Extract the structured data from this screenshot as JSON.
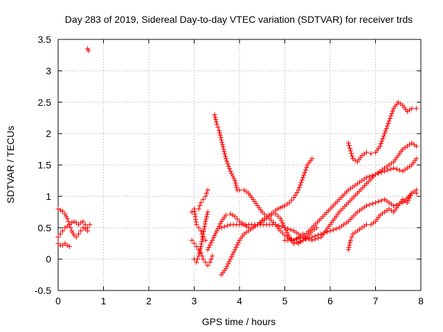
{
  "chart_data": {
    "type": "scatter",
    "title": "Day 283 of 2019, Sidereal Day-to-day VTEC variation (SDTVAR) for receiver trds",
    "xlabel": "GPS time / hours",
    "ylabel": "SDTVAR / TECUs",
    "xlim": [
      0,
      8
    ],
    "ylim": [
      -0.5,
      3.5
    ],
    "xticks": [
      0,
      1,
      2,
      3,
      4,
      5,
      6,
      7,
      8
    ],
    "xtick_labels": [
      "0",
      "1",
      "2",
      "3",
      "4",
      "5",
      "6",
      "7",
      "8"
    ],
    "yticks": [
      -0.5,
      0,
      0.5,
      1,
      1.5,
      2,
      2.5,
      3,
      3.5
    ],
    "ytick_labels": [
      "-0.5",
      "0",
      "0.5",
      "1",
      "1.5",
      "2",
      "2.5",
      "3",
      "3.5"
    ],
    "grid": true,
    "marker": "+",
    "color": "#ff0000",
    "series": [
      {
        "x": [
          0.0,
          0.05,
          0.1,
          0.15,
          0.2,
          0.25,
          0.3,
          0.35,
          0.4,
          0.45,
          0.5,
          0.55,
          0.6,
          0.65,
          0.7
        ],
        "y": [
          0.35,
          0.4,
          0.45,
          0.5,
          0.52,
          0.55,
          0.58,
          0.6,
          0.58,
          0.55,
          0.58,
          0.6,
          0.55,
          0.5,
          0.55
        ]
      },
      {
        "x": [
          0.0,
          0.05,
          0.1,
          0.15,
          0.2,
          0.25,
          0.3,
          0.35,
          0.4,
          0.45,
          0.5,
          0.55,
          0.6,
          0.65
        ],
        "y": [
          0.8,
          0.78,
          0.76,
          0.72,
          0.65,
          0.55,
          0.45,
          0.38,
          0.35,
          0.4,
          0.45,
          0.5,
          0.48,
          0.45
        ]
      },
      {
        "x": [
          0.0,
          0.05,
          0.1,
          0.15,
          0.2,
          0.25
        ],
        "y": [
          0.25,
          0.22,
          0.22,
          0.25,
          0.22,
          0.2
        ]
      },
      {
        "x": [
          0.65,
          0.67
        ],
        "y": [
          3.35,
          3.32
        ]
      },
      {
        "x": [
          2.95,
          3.0,
          3.05,
          3.1,
          3.15,
          3.2,
          3.25,
          3.3,
          3.35,
          3.4
        ],
        "y": [
          0.3,
          0.25,
          0.2,
          0.15,
          0.1,
          0.0,
          -0.05,
          -0.1,
          -0.05,
          0.05
        ]
      },
      {
        "x": [
          2.95,
          3.0,
          3.05,
          3.1,
          3.15,
          3.2,
          3.25
        ],
        "y": [
          0.75,
          0.8,
          0.55,
          0.5,
          0.45,
          0.35,
          0.3
        ]
      },
      {
        "x": [
          3.0,
          3.05,
          3.1,
          3.15,
          3.2,
          3.25,
          3.3
        ],
        "y": [
          0.0,
          -0.05,
          0.05,
          0.2,
          0.4,
          0.6,
          0.75
        ]
      },
      {
        "x": [
          3.1,
          3.15,
          3.2,
          3.25,
          3.3
        ],
        "y": [
          0.8,
          0.9,
          0.95,
          1.0,
          1.1
        ]
      },
      {
        "x": [
          3.3,
          3.4,
          3.5,
          3.6,
          3.7,
          3.8,
          3.9,
          4.0,
          4.1,
          4.2,
          4.3,
          4.4,
          4.5,
          4.6,
          4.7,
          4.8,
          4.9,
          5.0,
          5.1,
          5.2,
          5.3,
          5.4,
          5.5,
          5.6
        ],
        "y": [
          0.15,
          0.3,
          0.45,
          0.6,
          0.7,
          0.72,
          0.68,
          0.6,
          0.55,
          0.5,
          0.5,
          0.55,
          0.62,
          0.68,
          0.72,
          0.78,
          0.82,
          0.85,
          0.9,
          0.98,
          1.1,
          1.3,
          1.5,
          1.6
        ]
      },
      {
        "x": [
          3.45,
          3.5,
          3.55,
          3.6,
          3.7,
          3.8,
          3.9,
          3.95,
          4.0,
          4.1,
          4.2,
          4.3,
          4.4,
          4.5,
          4.6,
          4.7,
          4.8,
          4.9,
          5.0,
          5.1,
          5.2,
          5.3,
          5.4
        ],
        "y": [
          2.3,
          2.15,
          2.05,
          1.9,
          1.6,
          1.4,
          1.25,
          1.1,
          1.1,
          1.1,
          1.05,
          0.95,
          0.85,
          0.75,
          0.68,
          0.62,
          0.55,
          0.45,
          0.38,
          0.33,
          0.3,
          0.35,
          0.4
        ]
      },
      {
        "x": [
          3.6,
          3.7,
          3.8,
          3.9,
          4.0,
          4.1,
          4.2,
          4.3,
          4.4,
          4.5,
          4.6,
          4.7,
          4.8,
          4.9,
          5.0,
          5.1,
          5.2,
          5.3,
          5.4,
          5.5,
          5.6,
          5.7
        ],
        "y": [
          -0.25,
          -0.15,
          0.0,
          0.15,
          0.3,
          0.4,
          0.45,
          0.5,
          0.55,
          0.6,
          0.65,
          0.7,
          0.72,
          0.65,
          0.5,
          0.35,
          0.25,
          0.25,
          0.3,
          0.35,
          0.45,
          0.5
        ]
      },
      {
        "x": [
          3.6,
          3.8,
          4.0,
          4.2,
          4.4,
          4.6,
          4.8,
          5.0,
          5.2,
          5.4,
          5.6,
          5.8,
          6.0,
          6.2,
          6.4,
          6.6,
          6.8,
          7.0,
          7.2,
          7.4,
          7.6,
          7.8,
          7.9
        ],
        "y": [
          0.5,
          0.55,
          0.55,
          0.55,
          0.55,
          0.55,
          0.55,
          0.5,
          0.45,
          0.35,
          0.3,
          0.35,
          0.55,
          0.75,
          0.9,
          1.05,
          1.2,
          1.35,
          1.4,
          1.45,
          1.4,
          1.5,
          1.6
        ]
      },
      {
        "x": [
          5.0,
          5.2,
          5.4,
          5.6,
          5.8,
          6.0,
          6.2,
          6.4,
          6.6,
          6.8,
          7.0,
          7.2,
          7.4,
          7.6,
          7.8,
          7.9
        ],
        "y": [
          0.3,
          0.3,
          0.35,
          0.5,
          0.65,
          0.8,
          0.95,
          1.1,
          1.2,
          1.3,
          1.35,
          1.45,
          1.55,
          1.75,
          1.85,
          1.8
        ]
      },
      {
        "x": [
          5.2,
          5.4,
          5.6,
          5.8,
          6.0,
          6.2,
          6.4,
          6.6,
          6.8,
          7.0,
          7.2,
          7.4,
          7.6,
          7.8,
          7.9
        ],
        "y": [
          0.25,
          0.3,
          0.35,
          0.4,
          0.45,
          0.5,
          0.6,
          0.75,
          0.85,
          0.9,
          0.95,
          0.85,
          0.9,
          1.05,
          1.05
        ]
      },
      {
        "x": [
          6.4,
          6.5,
          6.6,
          6.7,
          6.8,
          6.9,
          7.0,
          7.1,
          7.2,
          7.3,
          7.4,
          7.5,
          7.6,
          7.7,
          7.8,
          7.9
        ],
        "y": [
          1.85,
          1.6,
          1.55,
          1.65,
          1.7,
          1.68,
          1.7,
          1.8,
          2.0,
          2.2,
          2.4,
          2.5,
          2.45,
          2.35,
          2.4,
          2.4
        ]
      },
      {
        "x": [
          6.4,
          6.45,
          6.5,
          6.6,
          6.7,
          6.8,
          6.9,
          7.0,
          7.1,
          7.2,
          7.3,
          7.4,
          7.5,
          7.6,
          7.7,
          7.8,
          7.9
        ],
        "y": [
          0.15,
          0.3,
          0.4,
          0.45,
          0.5,
          0.55,
          0.55,
          0.6,
          0.7,
          0.75,
          0.8,
          0.75,
          0.85,
          0.95,
          0.9,
          1.05,
          1.1
        ]
      }
    ]
  }
}
